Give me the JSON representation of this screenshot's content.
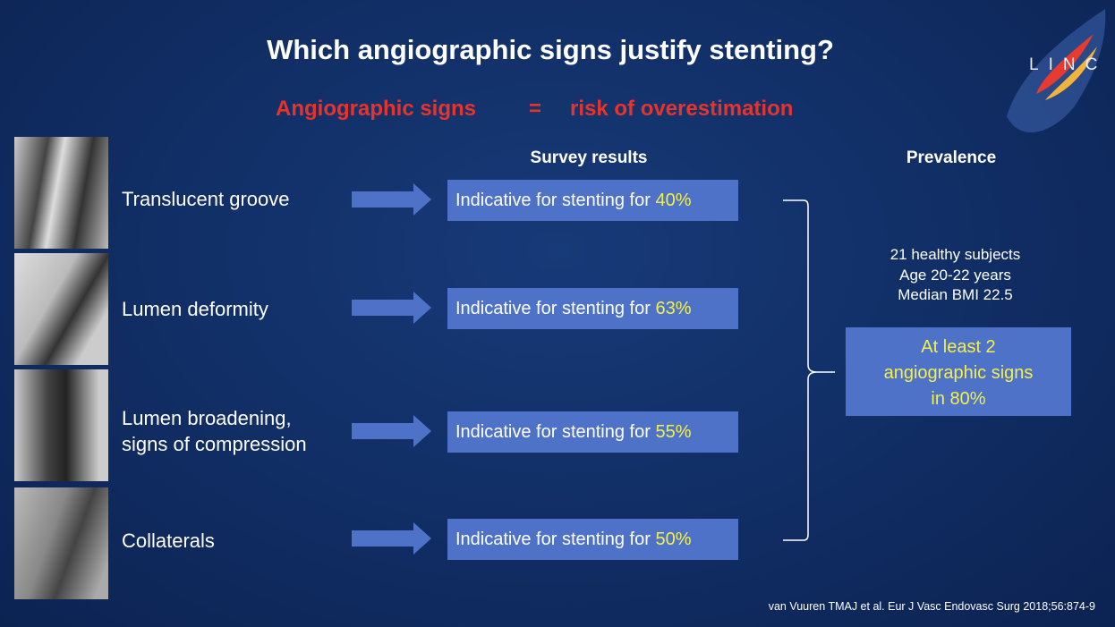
{
  "header": {
    "title": "Which angiographic signs justify stenting?",
    "subtitle": {
      "left": "Angiographic signs",
      "operator": "=",
      "right": "risk of overestimation"
    },
    "logo": "LINC"
  },
  "columns": {
    "survey": "Survey results",
    "prevalence": "Prevalence"
  },
  "rows": [
    {
      "sign": [
        "Translucent groove"
      ],
      "result": "Indicative for stenting for ",
      "percent": "40%"
    },
    {
      "sign": [
        "Lumen deformity"
      ],
      "result": "Indicative for stenting for ",
      "percent": "63%"
    },
    {
      "sign": [
        "Lumen broadening,",
        "signs of compression"
      ],
      "result": "Indicative for stenting for ",
      "percent": "55%"
    },
    {
      "sign": [
        "Collaterals"
      ],
      "result": "Indicative for stenting for ",
      "percent": "50%"
    }
  ],
  "prevalence": {
    "lines": [
      "21 healthy subjects",
      "Age 20-22 years",
      "Median BMI 22.5"
    ],
    "highlight": [
      "At least 2",
      "angiographic signs",
      "in 80%"
    ]
  },
  "citation": "van Vuuren TMAJ et al. Eur J Vasc Endovasc Surg 2018;56:874-9"
}
